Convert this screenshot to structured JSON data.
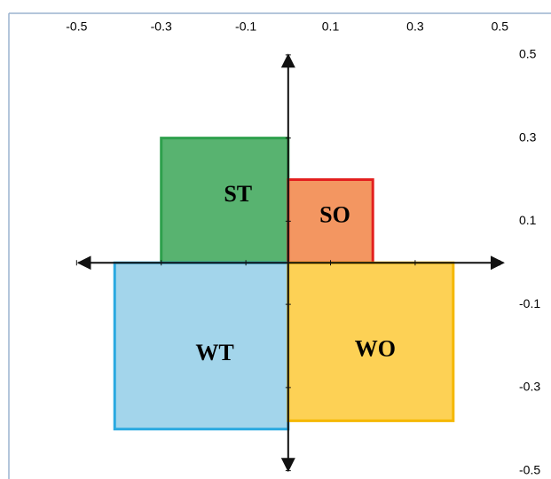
{
  "chart_data": {
    "type": "quadrant",
    "series": [
      {
        "name": "ST",
        "color": "#2ea04c",
        "x": -0.3,
        "y": 0.3
      },
      {
        "name": "SO",
        "color": "#f07c3a",
        "x": 0.2,
        "y": 0.2
      },
      {
        "name": "WT",
        "color": "#8ccbe6",
        "x": -0.41,
        "y": -0.4
      },
      {
        "name": "WO",
        "color": "#fcc52a",
        "x": 0.39,
        "y": -0.38
      }
    ],
    "xlim": [
      -0.66,
      0.6
    ],
    "ylim": [
      -0.52,
      0.6
    ],
    "xticks": [
      -0.5,
      -0.3,
      -0.1,
      0.1,
      0.3,
      0.5
    ],
    "yticks": [
      0.5,
      0.3,
      0.1,
      -0.1,
      -0.3,
      -0.5
    ]
  }
}
